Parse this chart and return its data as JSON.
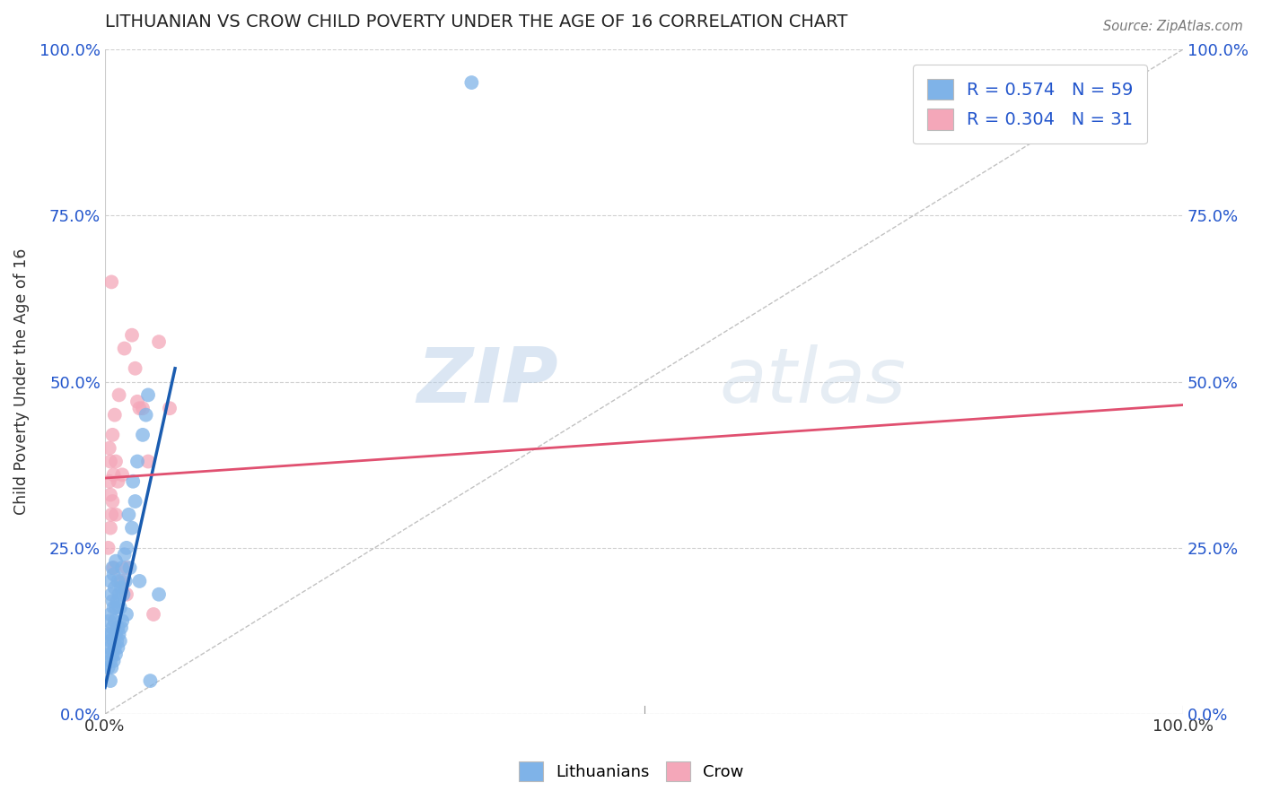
{
  "title": "LITHUANIAN VS CROW CHILD POVERTY UNDER THE AGE OF 16 CORRELATION CHART",
  "source": "Source: ZipAtlas.com",
  "ylabel": "Child Poverty Under the Age of 16",
  "xlabel": "",
  "legend_bottom": [
    "Lithuanians",
    "Crow"
  ],
  "xlim": [
    0,
    1.0
  ],
  "ylim": [
    0,
    1.0
  ],
  "xtick_positions": [
    0.0,
    1.0
  ],
  "xtick_labels": [
    "0.0%",
    "100.0%"
  ],
  "ytick_values": [
    0.0,
    0.25,
    0.5,
    0.75,
    1.0
  ],
  "ytick_labels": [
    "0.0%",
    "25.0%",
    "50.0%",
    "75.0%",
    "100.0%"
  ],
  "grid_color": "#cccccc",
  "blue_color": "#7fb3e8",
  "blue_edge_color": "#5a9fd4",
  "pink_color": "#f4a7b9",
  "pink_edge_color": "#e07a96",
  "blue_line_color": "#1a5cb0",
  "pink_line_color": "#e05070",
  "diagonal_color": "#bbbbbb",
  "title_fontsize": 14,
  "R_blue": 0.574,
  "N_blue": 59,
  "R_pink": 0.304,
  "N_pink": 31,
  "legend_label_color": "#2255cc",
  "watermark_zip": "ZIP",
  "watermark_atlas": "atlas",
  "blue_scatter_x": [
    0.003,
    0.003,
    0.004,
    0.004,
    0.004,
    0.005,
    0.005,
    0.005,
    0.005,
    0.005,
    0.006,
    0.006,
    0.006,
    0.007,
    0.007,
    0.007,
    0.007,
    0.008,
    0.008,
    0.008,
    0.008,
    0.009,
    0.009,
    0.009,
    0.01,
    0.01,
    0.01,
    0.01,
    0.011,
    0.011,
    0.012,
    0.012,
    0.012,
    0.013,
    0.013,
    0.014,
    0.014,
    0.015,
    0.015,
    0.016,
    0.016,
    0.017,
    0.018,
    0.019,
    0.02,
    0.02,
    0.022,
    0.023,
    0.025,
    0.026,
    0.028,
    0.03,
    0.032,
    0.035,
    0.038,
    0.04,
    0.042,
    0.05,
    0.34
  ],
  "blue_scatter_y": [
    0.07,
    0.12,
    0.09,
    0.14,
    0.1,
    0.05,
    0.08,
    0.11,
    0.15,
    0.2,
    0.07,
    0.12,
    0.18,
    0.09,
    0.13,
    0.17,
    0.22,
    0.08,
    0.11,
    0.16,
    0.21,
    0.1,
    0.14,
    0.19,
    0.09,
    0.12,
    0.16,
    0.23,
    0.11,
    0.17,
    0.1,
    0.13,
    0.2,
    0.12,
    0.18,
    0.11,
    0.16,
    0.13,
    0.19,
    0.14,
    0.22,
    0.18,
    0.24,
    0.2,
    0.15,
    0.25,
    0.3,
    0.22,
    0.28,
    0.35,
    0.32,
    0.38,
    0.2,
    0.42,
    0.45,
    0.48,
    0.05,
    0.18,
    0.95
  ],
  "pink_scatter_x": [
    0.003,
    0.004,
    0.004,
    0.005,
    0.005,
    0.005,
    0.006,
    0.006,
    0.007,
    0.007,
    0.008,
    0.008,
    0.009,
    0.01,
    0.01,
    0.012,
    0.013,
    0.015,
    0.016,
    0.018,
    0.02,
    0.02,
    0.025,
    0.028,
    0.03,
    0.032,
    0.035,
    0.04,
    0.045,
    0.05,
    0.06
  ],
  "pink_scatter_y": [
    0.25,
    0.35,
    0.4,
    0.28,
    0.33,
    0.38,
    0.3,
    0.65,
    0.32,
    0.42,
    0.22,
    0.36,
    0.45,
    0.3,
    0.38,
    0.35,
    0.48,
    0.2,
    0.36,
    0.55,
    0.18,
    0.22,
    0.57,
    0.52,
    0.47,
    0.46,
    0.46,
    0.38,
    0.15,
    0.56,
    0.46
  ],
  "blue_line_x": [
    0.0,
    0.065
  ],
  "blue_line_y": [
    0.04,
    0.52
  ],
  "pink_line_x": [
    0.0,
    1.0
  ],
  "pink_line_y": [
    0.355,
    0.465
  ]
}
